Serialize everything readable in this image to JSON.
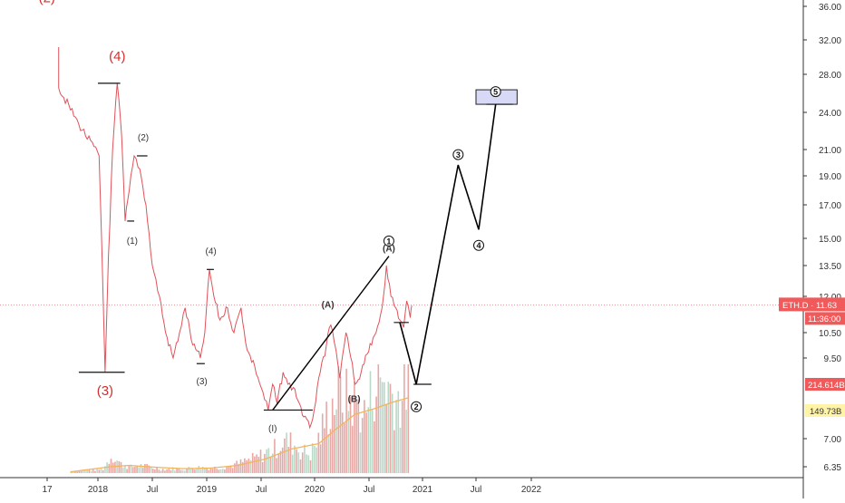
{
  "chart_data": {
    "type": "line",
    "title": "",
    "symbol": "ETH.D",
    "last_price": "11.63",
    "countdown": "11:36:00",
    "volume_labels": {
      "total": "214.614B",
      "ma": "149.73B"
    },
    "x_ticks": [
      "17",
      "2018",
      "Jul",
      "2019",
      "Jul",
      "2020",
      "Jul",
      "2021",
      "Jul",
      "2022"
    ],
    "y_ticks": [
      "36.00",
      "32.00",
      "28.00",
      "24.00",
      "21.00",
      "19.00",
      "17.00",
      "15.00",
      "13.50",
      "12.00",
      "10.50",
      "9.50",
      "7.00",
      "6.35"
    ],
    "x_range": [
      "2017-12",
      "2022-02"
    ],
    "y_scale": "log",
    "grid": false,
    "colors": {
      "price": "#e0525a",
      "volume": "#e8a7a5",
      "volume_ma": "#f2b45b",
      "projection": "#000000",
      "wave_red": "#d32f2f",
      "wave_dark": "#333333",
      "target_zone": "#d8d9f7",
      "price_badge": "#f15a5a",
      "ma_badge": "#fff3a8"
    },
    "price_series": {
      "name": "ETH.D",
      "points": [
        [
          "2017-12-08",
          26.5
        ],
        [
          "2017-12-20",
          23.0
        ],
        [
          "2018-01-05",
          20.5
        ],
        [
          "2018-01-14",
          14.5
        ],
        [
          "2018-01-25",
          9.0
        ],
        [
          "2018-02-06",
          14.0
        ],
        [
          "2018-02-20",
          21.0
        ],
        [
          "2018-03-05",
          27.0
        ],
        [
          "2018-03-20",
          22.0
        ],
        [
          "2018-04-01",
          16.0
        ],
        [
          "2018-04-15",
          18.0
        ],
        [
          "2018-05-01",
          20.5
        ],
        [
          "2018-05-20",
          19.5
        ],
        [
          "2018-06-10",
          17.0
        ],
        [
          "2018-07-01",
          13.5
        ],
        [
          "2018-07-25",
          12.0
        ],
        [
          "2018-08-15",
          10.5
        ],
        [
          "2018-09-10",
          9.5
        ],
        [
          "2018-10-01",
          10.5
        ],
        [
          "2018-10-20",
          11.5
        ],
        [
          "2018-11-15",
          10.0
        ],
        [
          "2018-12-10",
          9.5
        ],
        [
          "2018-12-25",
          10.5
        ],
        [
          "2019-01-10",
          13.3
        ],
        [
          "2019-01-25",
          12.0
        ],
        [
          "2019-02-15",
          11.0
        ],
        [
          "2019-03-10",
          11.5
        ],
        [
          "2019-04-01",
          10.5
        ],
        [
          "2019-04-25",
          11.5
        ],
        [
          "2019-05-15",
          9.8
        ],
        [
          "2019-06-10",
          9.2
        ],
        [
          "2019-07-01",
          8.5
        ],
        [
          "2019-07-25",
          7.8
        ],
        [
          "2019-08-10",
          8.6
        ],
        [
          "2019-08-25",
          8.0
        ],
        [
          "2019-09-15",
          9.0
        ],
        [
          "2019-10-01",
          8.6
        ],
        [
          "2019-10-20",
          8.5
        ],
        [
          "2019-11-10",
          8.0
        ],
        [
          "2019-11-25",
          7.6
        ],
        [
          "2019-12-15",
          7.3
        ],
        [
          "2019-12-30",
          7.8
        ],
        [
          "2020-01-20",
          9.0
        ],
        [
          "2020-02-10",
          10.0
        ],
        [
          "2020-02-25",
          10.8
        ],
        [
          "2020-03-12",
          9.8
        ],
        [
          "2020-03-25",
          8.8
        ],
        [
          "2020-04-15",
          10.5
        ],
        [
          "2020-05-01",
          9.5
        ],
        [
          "2020-05-15",
          8.6
        ],
        [
          "2020-06-05",
          9.0
        ],
        [
          "2020-06-20",
          9.6
        ],
        [
          "2020-07-10",
          10.0
        ],
        [
          "2020-07-25",
          10.5
        ],
        [
          "2020-08-15",
          11.5
        ],
        [
          "2020-08-30",
          13.5
        ],
        [
          "2020-09-15",
          12.0
        ],
        [
          "2020-10-01",
          11.5
        ],
        [
          "2020-10-15",
          11.0
        ],
        [
          "2020-10-28",
          10.7
        ],
        [
          "2020-11-08",
          11.8
        ],
        [
          "2020-11-20",
          11.1
        ],
        [
          "2020-11-25",
          11.6
        ]
      ]
    },
    "volume_series": {
      "name": "Volume",
      "unit": "B",
      "points": [
        [
          "2017-12",
          3
        ],
        [
          "2018-01",
          6
        ],
        [
          "2018-02",
          28
        ],
        [
          "2018-03",
          14
        ],
        [
          "2018-04",
          9
        ],
        [
          "2018-05",
          12
        ],
        [
          "2018-06",
          10
        ],
        [
          "2018-07",
          7
        ],
        [
          "2018-08",
          6
        ],
        [
          "2018-09",
          7
        ],
        [
          "2018-10",
          6
        ],
        [
          "2018-11",
          9
        ],
        [
          "2018-12",
          9
        ],
        [
          "2019-01",
          8
        ],
        [
          "2019-02",
          9
        ],
        [
          "2019-03",
          11
        ],
        [
          "2019-04",
          15
        ],
        [
          "2019-05",
          20
        ],
        [
          "2019-06",
          24
        ],
        [
          "2019-07",
          32
        ],
        [
          "2019-08",
          38
        ],
        [
          "2019-09",
          50
        ],
        [
          "2019-10",
          46
        ],
        [
          "2019-11",
          34
        ],
        [
          "2019-12",
          30
        ],
        [
          "2020-01",
          55
        ],
        [
          "2020-02",
          98
        ],
        [
          "2020-03",
          122
        ],
        [
          "2020-04",
          115
        ],
        [
          "2020-05",
          110
        ],
        [
          "2020-06",
          92
        ],
        [
          "2020-07",
          135
        ],
        [
          "2020-08",
          148
        ],
        [
          "2020-09",
          126
        ],
        [
          "2020-10",
          112
        ],
        [
          "2020-11",
          158
        ]
      ]
    },
    "volume_ma_series": {
      "name": "Volume MA",
      "points": [
        [
          "2017-12",
          2
        ],
        [
          "2018-02",
          10
        ],
        [
          "2018-04",
          12
        ],
        [
          "2018-07",
          9
        ],
        [
          "2018-10",
          7
        ],
        [
          "2019-01",
          8
        ],
        [
          "2019-04",
          12
        ],
        [
          "2019-07",
          22
        ],
        [
          "2019-10",
          38
        ],
        [
          "2020-01",
          46
        ],
        [
          "2020-03",
          70
        ],
        [
          "2020-05",
          92
        ],
        [
          "2020-07",
          100
        ],
        [
          "2020-09",
          110
        ],
        [
          "2020-11",
          118
        ]
      ]
    },
    "projection_path": [
      [
        "2020-10-15",
        10.9
      ],
      [
        "2020-12-10",
        8.6
      ],
      [
        "2021-05-01",
        19.8
      ],
      [
        "2021-07-10",
        15.5
      ],
      [
        "2021-09-05",
        24.8
      ]
    ],
    "wave_lines": [
      {
        "from": [
          "2019-08-10",
          7.8
        ],
        "to": [
          "2020-09-08",
          14.0
        ]
      }
    ],
    "target_zone": {
      "x0": "2021-07-01",
      "x1": "2021-11-15",
      "y0": 24.8,
      "y1": 26.3
    },
    "level_lines": [
      {
        "x0": "2018-01-01",
        "x1": "2018-03-15",
        "y": 27.0
      },
      {
        "x0": "2017-12-20",
        "x1": "2018-03-30",
        "y": 9.0
      },
      {
        "x0": "2018-05-10",
        "x1": "2018-06-15",
        "y": 20.5
      },
      {
        "x0": "2018-04-08",
        "x1": "2018-05-01",
        "y": 16.0
      },
      {
        "x0": "2019-01-01",
        "x1": "2019-01-25",
        "y": 13.3
      },
      {
        "x0": "2018-11-28",
        "x1": "2018-12-25",
        "y": 9.3
      },
      {
        "x0": "2019-07-10",
        "x1": "2019-12-25",
        "y": 7.8
      },
      {
        "x0": "2020-09-25",
        "x1": "2020-11-15",
        "y": 10.9
      },
      {
        "x0": "2020-12-01",
        "x1": "2021-02-01",
        "y": 8.6
      },
      {
        "x0": "2021-08-05",
        "x1": "2021-11-01",
        "y": 24.8
      }
    ],
    "wave_labels": [
      {
        "text": "(2)",
        "x": "2017-12-01",
        "y": 36.5,
        "color": "red",
        "size": "large"
      },
      {
        "text": "(4)",
        "x": "2018-03-05",
        "y": 29.5,
        "color": "red",
        "size": "large"
      },
      {
        "text": "(3)",
        "x": "2018-01-25",
        "y": 8.25,
        "color": "red",
        "size": "large"
      },
      {
        "text": "(2)",
        "x": "2018-06-01",
        "y": 21.7,
        "color": "dark",
        "size": "small"
      },
      {
        "text": "(1)",
        "x": "2018-04-25",
        "y": 14.7,
        "color": "dark",
        "size": "small"
      },
      {
        "text": "(4)",
        "x": "2019-01-15",
        "y": 14.1,
        "color": "dark",
        "size": "small"
      },
      {
        "text": "(3)",
        "x": "2018-12-15",
        "y": 8.6,
        "color": "dark",
        "size": "small"
      },
      {
        "text": "(A)",
        "x": "2020-02-15",
        "y": 11.5,
        "color": "dark",
        "size": "small"
      },
      {
        "text": "(B)",
        "x": "2020-05-12",
        "y": 8.05,
        "color": "dark",
        "size": "small"
      },
      {
        "text": "(A)",
        "x": "2020-09-08",
        "y": 14.25,
        "color": "dark",
        "size": "small"
      },
      {
        "text": "(I)",
        "x": "2019-08-10",
        "y": 7.2,
        "color": "dark",
        "size": "small"
      }
    ],
    "circled_labels": [
      {
        "text": "1",
        "x": "2020-09-08",
        "y": 14.85
      },
      {
        "text": "2",
        "x": "2020-12-10",
        "y": 7.9
      },
      {
        "text": "3",
        "x": "2021-05-01",
        "y": 20.6
      },
      {
        "text": "4",
        "x": "2021-07-10",
        "y": 14.6
      },
      {
        "text": "5",
        "x": "2021-09-05",
        "y": 26.1
      }
    ]
  }
}
